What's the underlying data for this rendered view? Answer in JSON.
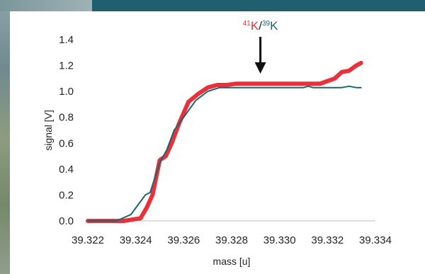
{
  "chart_data": {
    "type": "line",
    "xlabel": "mass [u]",
    "ylabel": "signal [V]",
    "xlim": [
      39.322,
      39.334
    ],
    "ylim": [
      0,
      1.4
    ],
    "x_ticks": [
      "39.322",
      "39.324",
      "39.326",
      "39.328",
      "39.330",
      "39.332",
      "39.334"
    ],
    "y_ticks": [
      "0.0",
      "0.2",
      "0.4",
      "0.6",
      "0.8",
      "1.0",
      "1.2",
      "1.4"
    ],
    "grid": false,
    "annotation": {
      "isotope_a_mass": "41",
      "isotope_a_symbol": "K",
      "separator": "/",
      "isotope_b_mass": "39",
      "isotope_b_symbol": "K",
      "arrow_x": 39.3292,
      "color_a": "#e8313a",
      "color_b": "#1a6670"
    },
    "series": [
      {
        "color": "#e8313a",
        "width": 6,
        "x": [
          39.322,
          39.3235,
          39.3242,
          39.32445,
          39.3247,
          39.325,
          39.32525,
          39.3255,
          39.3258,
          39.3262,
          39.3266,
          39.327,
          39.3274,
          39.3278,
          39.3282,
          39.329,
          39.33,
          39.331,
          39.3314,
          39.3317,
          39.332,
          39.3323,
          39.3326,
          39.3329,
          39.3332,
          39.3334
        ],
        "y": [
          0.0,
          0.0,
          0.02,
          0.1,
          0.2,
          0.47,
          0.5,
          0.6,
          0.75,
          0.92,
          0.98,
          1.03,
          1.05,
          1.05,
          1.06,
          1.06,
          1.06,
          1.06,
          1.06,
          1.06,
          1.08,
          1.1,
          1.15,
          1.16,
          1.2,
          1.22
        ]
      },
      {
        "color": "#1a6670",
        "width": 2,
        "x": [
          39.322,
          39.3232,
          39.3238,
          39.3244,
          39.3246,
          39.325,
          39.3253,
          39.3256,
          39.326,
          39.3265,
          39.327,
          39.3275,
          39.328,
          39.329,
          39.33,
          39.331,
          39.3312,
          39.3314,
          39.3317,
          39.332,
          39.3323,
          39.3326,
          39.3329,
          39.3332,
          39.3334
        ],
        "y": [
          0.0,
          0.0,
          0.05,
          0.2,
          0.22,
          0.45,
          0.55,
          0.7,
          0.8,
          0.93,
          1.0,
          1.03,
          1.03,
          1.03,
          1.03,
          1.03,
          1.04,
          1.03,
          1.03,
          1.03,
          1.03,
          1.03,
          1.04,
          1.03,
          1.03
        ]
      }
    ]
  }
}
